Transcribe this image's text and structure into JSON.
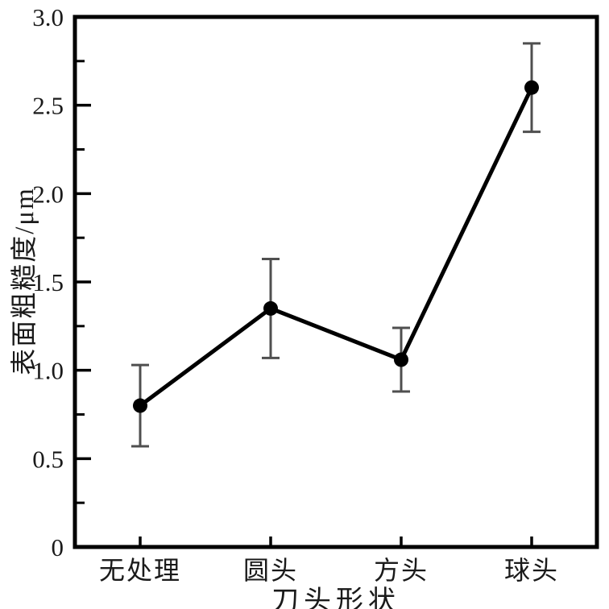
{
  "figure": {
    "background_color": "#ffffff",
    "frame_color": "#000000",
    "text_color": "#1a1a1a"
  },
  "chart_data": {
    "type": "line",
    "title": "",
    "categories": [
      "无处理",
      "圆头",
      "方头",
      "球头"
    ],
    "series": [
      {
        "name": "表面粗糙度",
        "values": [
          0.8,
          1.35,
          1.06,
          2.6
        ],
        "errors": [
          0.23,
          0.28,
          0.18,
          0.25
        ],
        "line_color": "#000000",
        "marker": "circle",
        "marker_color": "#000000"
      }
    ],
    "error_bar_color": "#4f4f4f",
    "xlabel": "刀头形状",
    "ylabel": "表面粗糙度/μm",
    "ylim": [
      0,
      3.0
    ],
    "yticks": [
      0,
      0.5,
      1.0,
      1.5,
      2.0,
      2.5,
      3.0
    ],
    "ytick_labels": [
      "0",
      "0.5",
      "1.0",
      "1.5",
      "2.0",
      "2.5",
      "3.0"
    ],
    "minor_ytick_step": 0.25,
    "grid": false,
    "legend_position": "none",
    "ticks_direction": "in"
  }
}
